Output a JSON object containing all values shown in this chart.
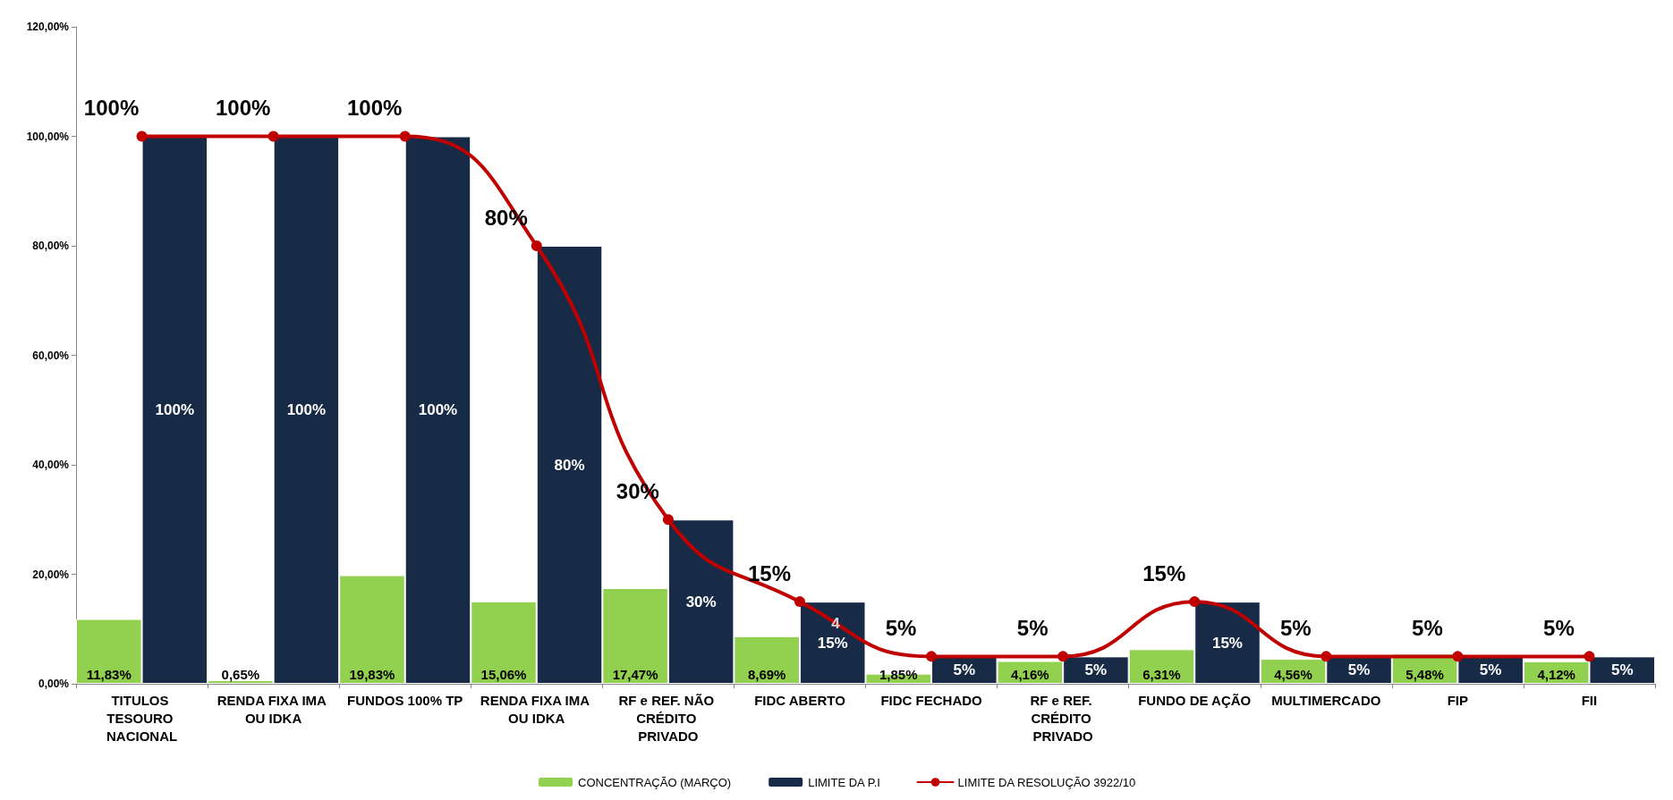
{
  "chart_data": {
    "type": "bar",
    "categories": [
      "TITULOS TESOURO NACIONAL",
      "RENDA FIXA IMA OU IDKA",
      "FUNDOS 100% TP",
      "RENDA FIXA IMA OU IDKA",
      "RF e REF. NÃO CRÉDITO PRIVADO",
      "FIDC ABERTO",
      "FIDC FECHADO",
      "RF e REF. CRÉDITO PRIVADO",
      "FUNDO DE AÇÃO",
      "MULTIMERCADO",
      "FIP",
      "FII"
    ],
    "series": [
      {
        "name": "CONCENTRAÇÃO (MARÇO)",
        "color": "#92d050",
        "values": [
          11.83,
          0.65,
          19.83,
          15.06,
          17.47,
          8.69,
          1.85,
          4.16,
          6.31,
          4.56,
          5.48,
          4.12
        ],
        "value_labels": [
          "11,83%",
          "0,65%",
          "19,83%",
          "15,06%",
          "17,47%",
          "8,69%",
          "1,85%",
          "4,16%",
          "6,31%",
          "4,56%",
          "5,48%",
          "4,12%"
        ]
      },
      {
        "name": "LIMITE DA P.I",
        "color": "#172b47",
        "values": [
          100,
          100,
          100,
          80,
          30,
          15,
          5,
          5,
          15,
          5,
          5,
          5
        ],
        "value_labels": [
          "100%",
          "100%",
          "100%",
          "80%",
          "30%",
          "15%",
          "5%",
          "5%",
          "15%",
          "5%",
          "5%",
          "5%"
        ]
      },
      {
        "name": "LIMITE DA RESOLUÇÃO 3922/10",
        "type": "line",
        "color": "#c00000",
        "values": [
          100,
          100,
          100,
          80,
          30,
          15,
          5,
          5,
          15,
          5,
          5,
          5
        ],
        "value_labels": [
          "100%",
          "100%",
          "100%",
          "80%",
          "30%",
          "15%",
          "5%",
          "5%",
          "15%",
          "5%",
          "5%",
          "5%"
        ]
      }
    ],
    "ylim": [
      0,
      120
    ],
    "yticks": [
      {
        "value": 0,
        "label": "0,00%"
      },
      {
        "value": 20,
        "label": "20,00%"
      },
      {
        "value": 40,
        "label": "40,00%"
      },
      {
        "value": 60,
        "label": "60,00%"
      },
      {
        "value": 80,
        "label": "80,00%"
      },
      {
        "value": 100,
        "label": "100,00%"
      },
      {
        "value": 120,
        "label": "120,00%"
      }
    ],
    "annotations": [
      {
        "text": "4",
        "x": "FIDC ABERTO",
        "y": 11
      }
    ],
    "grid": false,
    "legend": "bottom",
    "marker": "circle",
    "line_style": "solid"
  }
}
